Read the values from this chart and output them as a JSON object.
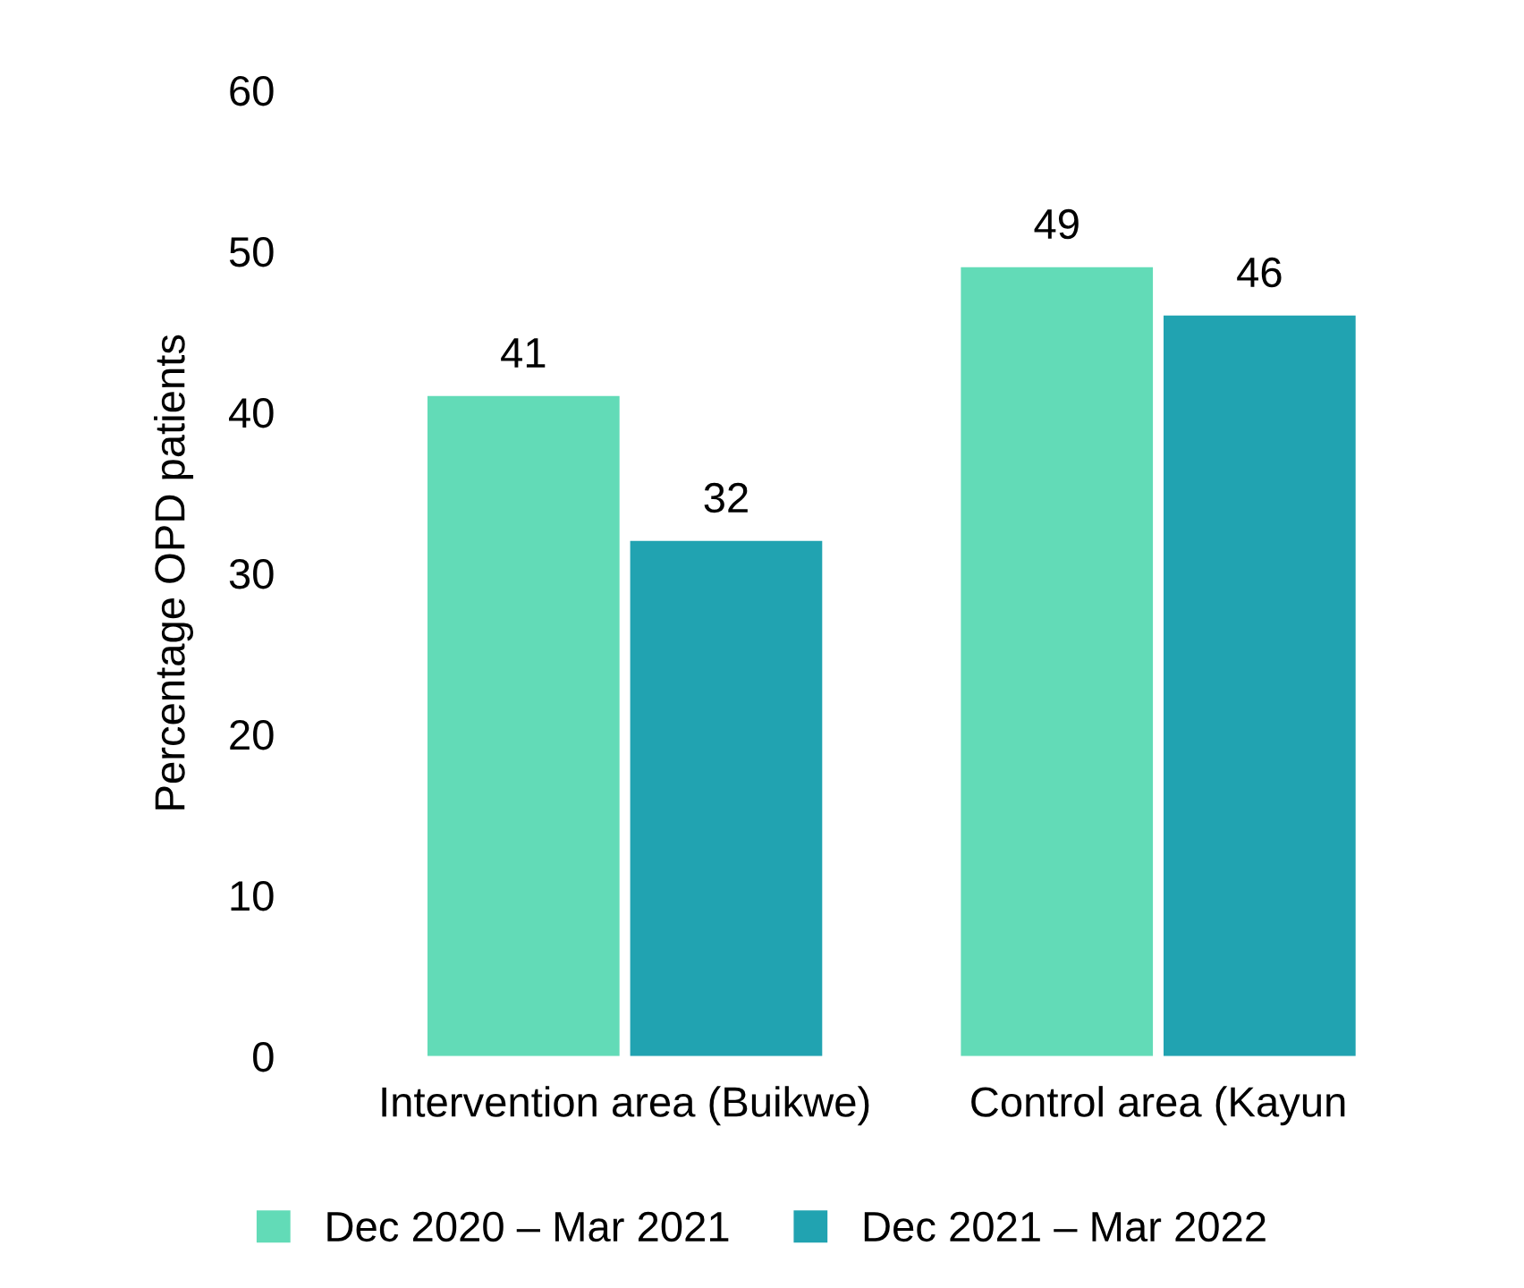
{
  "chart_data": {
    "type": "bar",
    "ylabel": "Percentage OPD patients",
    "categories": [
      "Intervention area (Buikwe)",
      "Control area (Kayun"
    ],
    "series": [
      {
        "name": "Dec 2020 – Mar 2021",
        "color": "#62dbb7",
        "values": [
          41,
          49
        ]
      },
      {
        "name": "Dec 2021 – Mar 2022",
        "color": "#21a3b1",
        "values": [
          32,
          46
        ]
      }
    ],
    "ylim": [
      0,
      60
    ],
    "yticks": [
      0,
      10,
      20,
      30,
      40,
      50,
      60
    ],
    "data_labels": true,
    "legend": "bottom",
    "grid": false
  }
}
